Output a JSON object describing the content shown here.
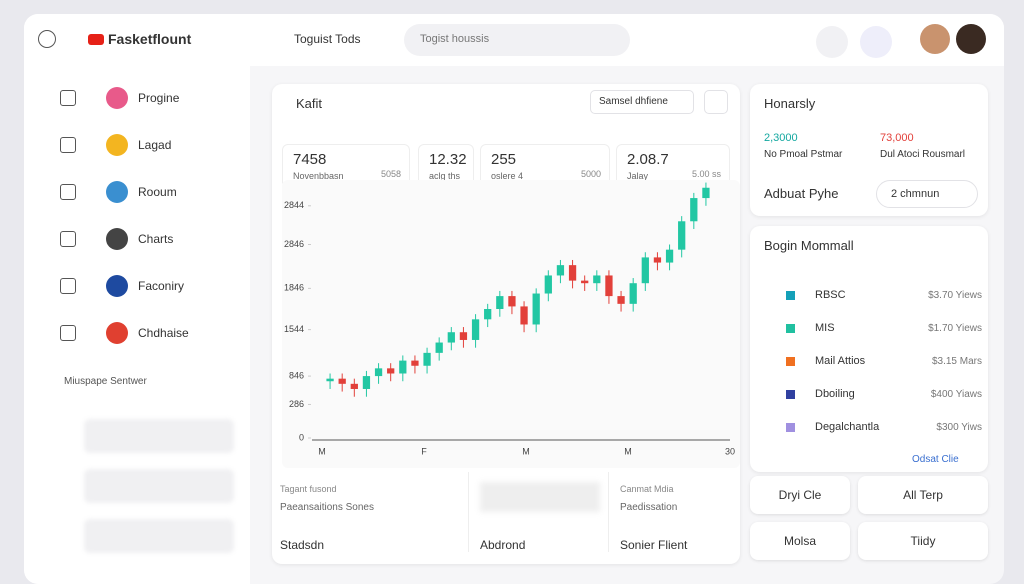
{
  "header": {
    "brand": "Fasketflount",
    "tab": "Toguist Tods",
    "search": "Togist houssis"
  },
  "sidebar": {
    "items": [
      "Progine",
      "Lagad",
      "Rooum",
      "Charts",
      "Faconiry",
      "Chdhaise"
    ],
    "section": "Miuspape Sentwer"
  },
  "main": {
    "title": "Kafit",
    "filter": "Samsel dhfiene",
    "stats": [
      {
        "value": "7458",
        "label": "Novenbbasn",
        "sub": "5058"
      },
      {
        "value": "12.32",
        "label": "aclg ths",
        "sub": ""
      },
      {
        "value": "255",
        "label": "oslere 4",
        "sub": "5000"
      },
      {
        "value": "2.08.7",
        "label": "Jalay",
        "sub": "5.00 ss"
      }
    ],
    "chart": {
      "type": "candlestick",
      "ylim": [
        0,
        100
      ],
      "yticks": [
        0,
        {
          "value": 13,
          "label": "286"
        },
        {
          "value": 24,
          "label": "846"
        },
        {
          "value": 42,
          "label": "1544"
        },
        {
          "value": 58,
          "label": "1846"
        },
        {
          "value": 75,
          "label": "2846"
        },
        {
          "value": 90,
          "label": "2844"
        }
      ],
      "x_labels": [
        "M",
        "F",
        "M",
        "M",
        "30"
      ],
      "up_color": "#22c7a3",
      "down_color": "#e2403a",
      "open": [
        22,
        23,
        21,
        19,
        24,
        27,
        25,
        30,
        28,
        33,
        37,
        41,
        38,
        46,
        50,
        55,
        51,
        44,
        56,
        63,
        67,
        61,
        60,
        63,
        55,
        52,
        60,
        70,
        68,
        73,
        84,
        93
      ],
      "high": [
        25,
        25,
        23,
        26,
        29,
        29,
        32,
        32,
        35,
        39,
        43,
        43,
        48,
        52,
        57,
        57,
        53,
        58,
        65,
        69,
        69,
        63,
        65,
        65,
        57,
        62,
        72,
        72,
        75,
        86,
        95,
        99
      ],
      "low": [
        19,
        18,
        16,
        16,
        21,
        22,
        22,
        25,
        25,
        30,
        34,
        35,
        35,
        43,
        47,
        48,
        41,
        41,
        53,
        60,
        58,
        57,
        57,
        52,
        49,
        49,
        57,
        65,
        65,
        70,
        81,
        90
      ],
      "close": [
        23,
        21,
        19,
        24,
        27,
        25,
        30,
        28,
        33,
        37,
        41,
        38,
        46,
        50,
        55,
        51,
        44,
        56,
        63,
        67,
        61,
        60,
        63,
        55,
        52,
        60,
        70,
        68,
        73,
        84,
        93,
        97
      ]
    },
    "footer": [
      {
        "caption": "Tagant fusond",
        "text": "Paeansaitions Sones",
        "title": "Stadsdn"
      },
      {
        "caption": "",
        "text": "",
        "title": "Abdrond"
      },
      {
        "caption": "Canmat Mdia",
        "text": "Paedissation",
        "title": "Sonier Flient"
      }
    ]
  },
  "right": {
    "title": "Honarsly",
    "metrics": [
      {
        "value": "2,3000",
        "label": "No Pmoal Pstmar"
      },
      {
        "value": "73,000",
        "label": "Dul Atoci Rousmarl"
      }
    ],
    "action_label": "Adbuat Pyhe",
    "action_button": "2 chmnun",
    "list_title": "Bogin Mommall",
    "list": [
      {
        "name": "RBSC",
        "price": "$3.70 Yiews"
      },
      {
        "name": "MIS",
        "price": "$1.70 Yiews"
      },
      {
        "name": "Mail Attios",
        "price": "$3.15 Mars"
      },
      {
        "name": "Dboiling",
        "price": "$400 Yiaws"
      },
      {
        "name": "Degalchantla",
        "price": "$300 Yiws"
      }
    ],
    "list_link": "Odsat Clie",
    "buttons": [
      "Dryi Cle",
      "All Terp",
      "Molsa",
      "Tiidy"
    ]
  }
}
